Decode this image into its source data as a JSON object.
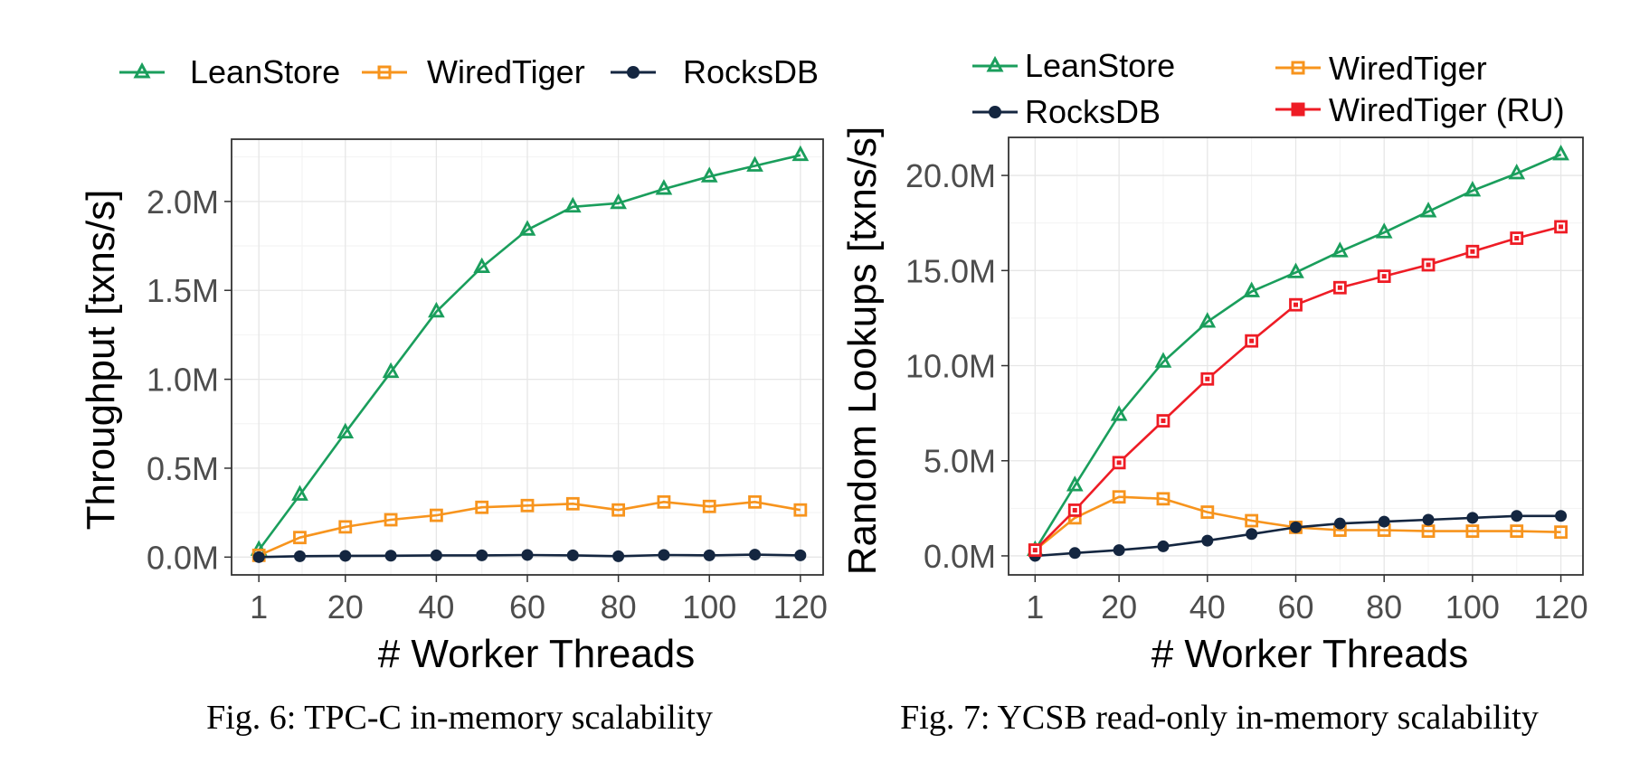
{
  "chart_data": [
    {
      "type": "line",
      "caption": "Fig. 6: TPC-C in-memory scalability",
      "xlabel": "# Worker Threads",
      "ylabel": "Throughput [txns/s]",
      "x": [
        1,
        10,
        20,
        30,
        40,
        50,
        60,
        70,
        80,
        90,
        100,
        110,
        120
      ],
      "xlim": [
        -5,
        125
      ],
      "ylim": [
        -0.1,
        2.35
      ],
      "xticks": [
        1,
        20,
        40,
        60,
        80,
        100,
        120
      ],
      "xtick_labels": [
        "1",
        "20",
        "40",
        "60",
        "80",
        "100",
        "120"
      ],
      "yticks": [
        0,
        0.5,
        1.0,
        1.5,
        2.0
      ],
      "ytick_labels": [
        "0.0M",
        "0.5M",
        "1.0M",
        "1.5M",
        "2.0M"
      ],
      "grid": true,
      "legend_position": "top",
      "series": [
        {
          "name": "LeanStore",
          "color": "#1a9e5c",
          "marker": "triangle",
          "values": [
            0.04,
            0.35,
            0.7,
            1.04,
            1.38,
            1.63,
            1.84,
            1.97,
            1.99,
            2.07,
            2.14,
            2.2,
            2.26
          ]
        },
        {
          "name": "WiredTiger",
          "color": "#f7941d",
          "marker": "square",
          "values": [
            0.01,
            0.11,
            0.17,
            0.21,
            0.235,
            0.28,
            0.29,
            0.3,
            0.265,
            0.31,
            0.285,
            0.31,
            0.265
          ]
        },
        {
          "name": "RocksDB",
          "color": "#142640",
          "marker": "circle",
          "values": [
            0.0,
            0.005,
            0.007,
            0.008,
            0.01,
            0.01,
            0.012,
            0.01,
            0.005,
            0.012,
            0.01,
            0.014,
            0.01
          ]
        }
      ]
    },
    {
      "type": "line",
      "caption": "Fig. 7: YCSB read-only in-memory scalability",
      "xlabel": "# Worker Threads",
      "ylabel": "Random Lookups [txns/s]",
      "x": [
        1,
        10,
        20,
        30,
        40,
        50,
        60,
        70,
        80,
        90,
        100,
        110,
        120
      ],
      "xlim": [
        -5,
        125
      ],
      "ylim": [
        -1.0,
        22.0
      ],
      "xticks": [
        1,
        20,
        40,
        60,
        80,
        100,
        120
      ],
      "xtick_labels": [
        "1",
        "20",
        "40",
        "60",
        "80",
        "100",
        "120"
      ],
      "yticks": [
        0,
        5,
        10,
        15,
        20
      ],
      "ytick_labels": [
        "0.0M",
        "5.0M",
        "10.0M",
        "15.0M",
        "20.0M"
      ],
      "grid": true,
      "legend_position": "top",
      "series": [
        {
          "name": "LeanStore",
          "color": "#1a9e5c",
          "marker": "triangle",
          "values": [
            0.3,
            3.7,
            7.4,
            10.2,
            12.3,
            13.9,
            14.9,
            16.0,
            17.0,
            18.1,
            19.2,
            20.1,
            21.1
          ]
        },
        {
          "name": "WiredTiger",
          "color": "#f7941d",
          "marker": "square",
          "values": [
            0.3,
            2.0,
            3.1,
            3.0,
            2.3,
            1.85,
            1.5,
            1.35,
            1.35,
            1.3,
            1.3,
            1.3,
            1.25
          ]
        },
        {
          "name": "RocksDB",
          "color": "#142640",
          "marker": "circle",
          "values": [
            0.0,
            0.15,
            0.3,
            0.5,
            0.8,
            1.15,
            1.5,
            1.7,
            1.8,
            1.9,
            2.0,
            2.1,
            2.1
          ]
        },
        {
          "name": "WiredTiger (RU)",
          "color": "#ee1c25",
          "marker": "square-filled",
          "values": [
            0.3,
            2.4,
            4.9,
            7.1,
            9.3,
            11.3,
            13.2,
            14.1,
            14.7,
            15.3,
            16.0,
            16.7,
            17.3
          ]
        }
      ]
    }
  ]
}
